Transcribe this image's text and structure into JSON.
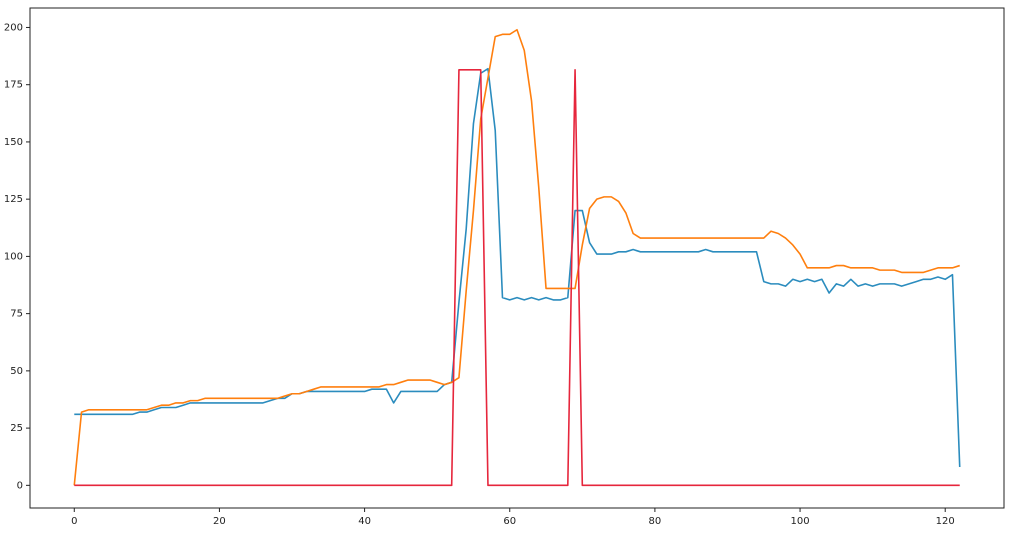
{
  "chart_data": {
    "type": "line",
    "x": [
      0,
      1,
      2,
      3,
      4,
      5,
      6,
      7,
      8,
      9,
      10,
      11,
      12,
      13,
      14,
      15,
      16,
      17,
      18,
      19,
      20,
      21,
      22,
      23,
      24,
      25,
      26,
      27,
      28,
      29,
      30,
      31,
      32,
      33,
      34,
      35,
      36,
      37,
      38,
      39,
      40,
      41,
      42,
      43,
      44,
      45,
      46,
      47,
      48,
      49,
      50,
      51,
      52,
      53,
      54,
      55,
      56,
      57,
      58,
      59,
      60,
      61,
      62,
      63,
      64,
      65,
      66,
      67,
      68,
      69,
      70,
      71,
      72,
      73,
      74,
      75,
      76,
      77,
      78,
      79,
      80,
      81,
      82,
      83,
      84,
      85,
      86,
      87,
      88,
      89,
      90,
      91,
      92,
      93,
      94,
      95,
      96,
      97,
      98,
      99,
      100,
      101,
      102,
      103,
      104,
      105,
      106,
      107,
      108,
      109,
      110,
      111,
      112,
      113,
      114,
      115,
      116,
      117,
      118,
      119,
      120,
      121,
      122
    ],
    "series": [
      {
        "color": "#2b8cbe",
        "values": [
          31,
          31,
          31,
          31,
          31,
          31,
          31,
          31,
          31,
          32,
          32,
          33,
          34,
          34,
          34,
          35,
          36,
          36,
          36,
          36,
          36,
          36,
          36,
          36,
          36,
          36,
          36,
          37,
          38,
          38,
          40,
          40,
          41,
          41,
          41,
          41,
          41,
          41,
          41,
          41,
          41,
          42,
          42,
          42,
          36,
          41,
          41,
          41,
          41,
          41,
          41,
          44,
          45,
          80,
          112,
          158,
          180,
          182,
          155,
          82,
          81,
          82,
          81,
          82,
          81,
          82,
          81,
          81,
          82,
          120,
          120,
          106,
          101,
          101,
          101,
          102,
          102,
          103,
          102,
          102,
          102,
          102,
          102,
          102,
          102,
          102,
          102,
          103,
          102,
          102,
          102,
          102,
          102,
          102,
          102,
          89,
          88,
          88,
          87,
          90,
          89,
          90,
          89,
          90,
          84,
          88,
          87,
          90,
          87,
          88,
          87,
          88,
          88,
          88,
          87,
          88,
          89,
          90,
          90,
          91,
          90,
          92,
          8
        ]
      },
      {
        "color": "#ff7f0e",
        "values": [
          0,
          32,
          33,
          33,
          33,
          33,
          33,
          33,
          33,
          33,
          33,
          34,
          35,
          35,
          36,
          36,
          37,
          37,
          38,
          38,
          38,
          38,
          38,
          38,
          38,
          38,
          38,
          38,
          38,
          39,
          40,
          40,
          41,
          42,
          43,
          43,
          43,
          43,
          43,
          43,
          43,
          43,
          43,
          44,
          44,
          45,
          46,
          46,
          46,
          46,
          45,
          44,
          45,
          47,
          85,
          120,
          160,
          178,
          196,
          197,
          197,
          199,
          190,
          168,
          130,
          86,
          86,
          86,
          86,
          86,
          105,
          121,
          125,
          126,
          126,
          124,
          119,
          110,
          108,
          108,
          108,
          108,
          108,
          108,
          108,
          108,
          108,
          108,
          108,
          108,
          108,
          108,
          108,
          108,
          108,
          108,
          111,
          110,
          108,
          105,
          101,
          95,
          95,
          95,
          95,
          96,
          96,
          95,
          95,
          95,
          95,
          94,
          94,
          94,
          93,
          93,
          93,
          93,
          94,
          95,
          95,
          95,
          96
        ]
      },
      {
        "color": "#e6263c",
        "values": [
          0,
          0,
          0,
          0,
          0,
          0,
          0,
          0,
          0,
          0,
          0,
          0,
          0,
          0,
          0,
          0,
          0,
          0,
          0,
          0,
          0,
          0,
          0,
          0,
          0,
          0,
          0,
          0,
          0,
          0,
          0,
          0,
          0,
          0,
          0,
          0,
          0,
          0,
          0,
          0,
          0,
          0,
          0,
          0,
          0,
          0,
          0,
          0,
          0,
          0,
          0,
          0,
          0,
          181.5,
          181.5,
          181.5,
          181.5,
          0,
          0,
          0,
          0,
          0,
          0,
          0,
          0,
          0,
          0,
          0,
          0,
          181.5,
          0,
          0,
          0,
          0,
          0,
          0,
          0,
          0,
          0,
          0,
          0,
          0,
          0,
          0,
          0,
          0,
          0,
          0,
          0,
          0,
          0,
          0,
          0,
          0,
          0,
          0,
          0,
          0,
          0,
          0,
          0,
          0,
          0,
          0,
          0,
          0,
          0,
          0,
          0,
          0,
          0,
          0,
          0,
          0,
          0,
          0,
          0,
          0,
          0,
          0,
          0,
          0,
          0
        ]
      }
    ],
    "xlim": [
      -6.1,
      128.1
    ],
    "xticks": [
      0,
      20,
      40,
      60,
      80,
      100,
      120
    ],
    "ylim": [
      -9.9,
      208.5
    ],
    "yticks": [
      0,
      25,
      50,
      75,
      100,
      125,
      150,
      175,
      200
    ]
  }
}
